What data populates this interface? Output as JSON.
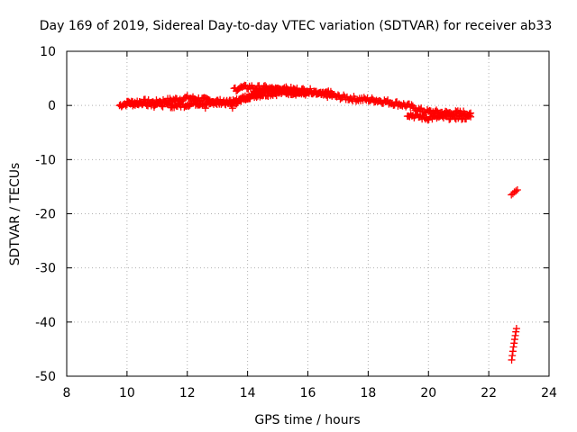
{
  "chart_data": {
    "type": "scatter",
    "title": "Day 169 of 2019, Sidereal Day-to-day VTEC variation (SDTVAR) for receiver ab33",
    "xlabel": "GPS time / hours",
    "ylabel": "SDTVAR / TECUs",
    "xlim": [
      8,
      24
    ],
    "ylim": [
      -50,
      10
    ],
    "xticks": [
      8,
      10,
      12,
      14,
      16,
      18,
      20,
      22,
      24
    ],
    "xtick_labels": [
      "8",
      "10",
      "12",
      "14",
      "16",
      "18",
      "20",
      "22",
      "24"
    ],
    "yticks": [
      -50,
      -40,
      -30,
      -20,
      -10,
      0,
      10
    ],
    "ytick_labels": [
      "-50",
      "-40",
      "-30",
      "-20",
      "-10",
      "0",
      "10"
    ],
    "grid": true,
    "marker": "+",
    "series": [
      {
        "name": "SDTVAR",
        "color": "#ff0000",
        "bands": [
          {
            "x": [
              9.75,
              9.85,
              10.0,
              10.3,
              10.6,
              10.9,
              11.2,
              11.5,
              11.8,
              12.0,
              12.3,
              12.6,
              12.9,
              13.2,
              13.5,
              13.6,
              13.8,
              14.0,
              14.3,
              14.6,
              15.0,
              15.4,
              15.8,
              16.2,
              16.5,
              16.8,
              17.0,
              17.3,
              17.6,
              17.9,
              18.2,
              18.5,
              18.8,
              19.1,
              19.4,
              19.6,
              19.8,
              20.0,
              20.3,
              20.6,
              20.9,
              21.2,
              21.4
            ],
            "y": [
              0.0,
              0.2,
              0.4,
              0.6,
              0.7,
              0.5,
              0.8,
              1.0,
              1.2,
              1.4,
              1.2,
              1.0,
              0.8,
              0.6,
              0.2,
              0.6,
              1.2,
              1.6,
              1.9,
              2.1,
              2.3,
              2.4,
              2.3,
              2.2,
              2.0,
              1.8,
              1.6,
              1.4,
              1.2,
              1.1,
              1.0,
              0.8,
              0.5,
              0.2,
              -0.2,
              -0.6,
              -1.0,
              -1.2,
              -1.3,
              -1.4,
              -1.4,
              -1.4,
              -1.4
            ]
          },
          {
            "x": [
              10.0,
              10.5,
              11.0,
              11.3,
              11.6,
              11.9,
              12.2,
              12.5,
              12.8,
              13.1,
              13.4,
              13.6,
              13.9,
              14.2,
              14.5,
              14.8,
              15.2,
              15.6,
              16.0,
              16.4,
              16.8
            ],
            "y": [
              0.3,
              0.4,
              0.4,
              0.1,
              0.0,
              0.1,
              0.4,
              0.5,
              0.3,
              0.5,
              0.7,
              0.9,
              1.4,
              2.0,
              2.5,
              2.9,
              3.0,
              2.9,
              2.7,
              2.4,
              2.2
            ]
          },
          {
            "x": [
              13.55,
              13.7,
              13.9,
              14.1,
              14.3,
              14.5,
              14.7,
              15.0,
              15.3,
              15.6,
              15.9
            ],
            "y": [
              3.0,
              3.2,
              3.3,
              3.4,
              3.2,
              3.3,
              3.1,
              2.9,
              2.8,
              2.6,
              2.4
            ]
          },
          {
            "x": [
              19.3,
              19.6,
              19.9,
              20.2,
              20.5,
              20.8,
              21.1,
              21.4
            ],
            "y": [
              -1.6,
              -2.0,
              -2.3,
              -2.2,
              -2.2,
              -2.1,
              -2.2,
              -2.1
            ]
          }
        ],
        "points": [
          {
            "x": 10.9,
            "y": -0.3
          },
          {
            "x": 11.5,
            "y": -0.4
          },
          {
            "x": 12.4,
            "y": 0.1
          },
          {
            "x": 12.6,
            "y": -0.5
          },
          {
            "x": 13.5,
            "y": -0.5
          },
          {
            "x": 22.75,
            "y": -16.5
          },
          {
            "x": 22.8,
            "y": -16.3
          },
          {
            "x": 22.85,
            "y": -16.0
          },
          {
            "x": 22.9,
            "y": -15.8
          },
          {
            "x": 22.95,
            "y": -15.6
          },
          {
            "x": 22.76,
            "y": -47.0
          },
          {
            "x": 22.78,
            "y": -46.2
          },
          {
            "x": 22.8,
            "y": -45.4
          },
          {
            "x": 22.82,
            "y": -44.6
          },
          {
            "x": 22.84,
            "y": -43.9
          },
          {
            "x": 22.86,
            "y": -43.2
          },
          {
            "x": 22.88,
            "y": -42.5
          },
          {
            "x": 22.9,
            "y": -41.8
          },
          {
            "x": 22.92,
            "y": -41.2
          }
        ]
      }
    ]
  }
}
